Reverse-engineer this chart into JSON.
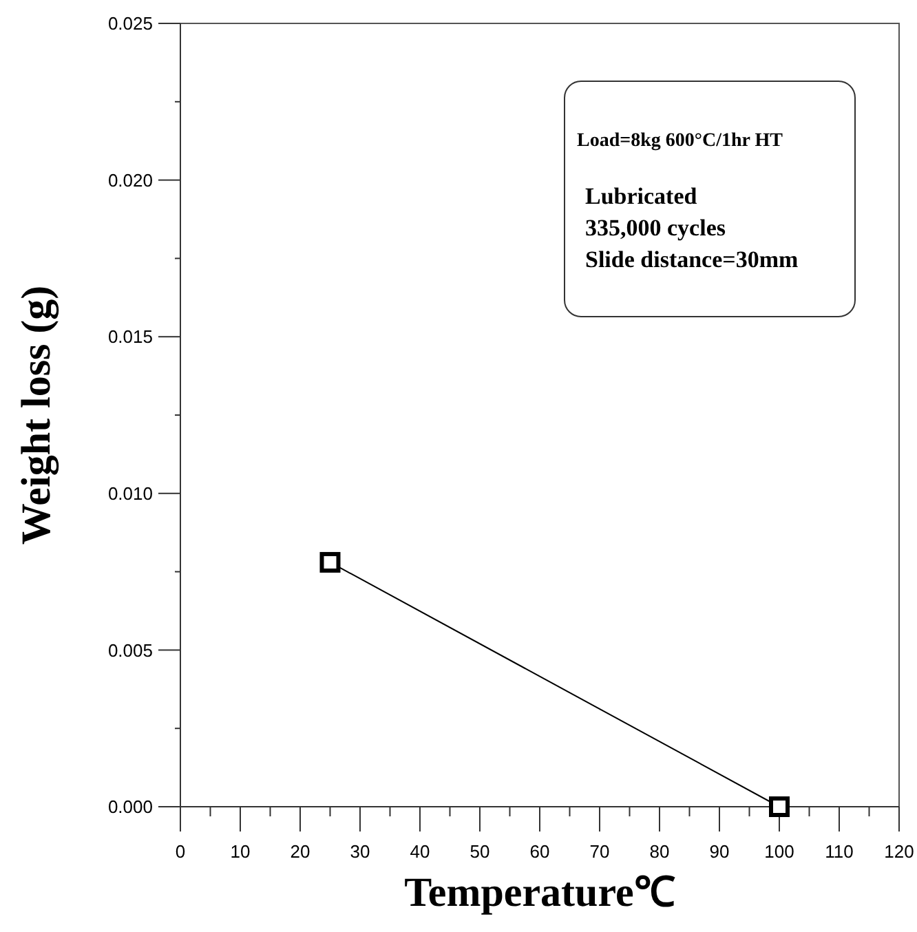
{
  "chart_data": {
    "type": "line",
    "xlabel": "Temperature℃",
    "ylabel": "Weight loss (g)",
    "x": [
      25,
      100
    ],
    "series": [
      {
        "color": "#000000",
        "values": [
          0.0078,
          0
        ]
      }
    ],
    "marker": "square",
    "line_style": "solid",
    "grid": false,
    "xlim": [
      0,
      120
    ],
    "xticks": [
      0,
      {
        "value": 5,
        "label": null
      },
      10,
      {
        "value": 15,
        "label": null
      },
      20,
      {
        "value": 25,
        "label": null
      },
      30,
      {
        "value": 35,
        "label": null
      },
      40,
      {
        "value": 45,
        "label": null
      },
      50,
      {
        "value": 55,
        "label": null
      },
      60,
      {
        "value": 65,
        "label": null
      },
      70,
      {
        "value": 75,
        "label": null
      },
      80,
      {
        "value": 85,
        "label": null
      },
      90,
      {
        "value": 95,
        "label": null
      },
      100,
      {
        "value": 105,
        "label": null
      },
      110,
      {
        "value": 115,
        "label": null
      },
      120
    ],
    "ylim": [
      0,
      0.025
    ],
    "yticks": [
      {
        "value": 0,
        "label": "0.000"
      },
      {
        "value": 0.0025,
        "label": null
      },
      {
        "value": 0.005,
        "label": "0.005"
      },
      {
        "value": 0.0075,
        "label": null
      },
      {
        "value": 0.01,
        "label": "0.010"
      },
      {
        "value": 0.0125,
        "label": null
      },
      {
        "value": 0.015,
        "label": "0.015"
      },
      {
        "value": 0.0175,
        "label": null
      },
      {
        "value": 0.02,
        "label": "0.020"
      },
      {
        "value": 0.0225,
        "label": null
      },
      {
        "value": 0.025,
        "label": "0.025"
      }
    ],
    "annotations": [
      "Load=8kg  600°C/1hr HT",
      "Lubricated",
      "335,000 cycles",
      "Slide distance=30mm"
    ]
  }
}
